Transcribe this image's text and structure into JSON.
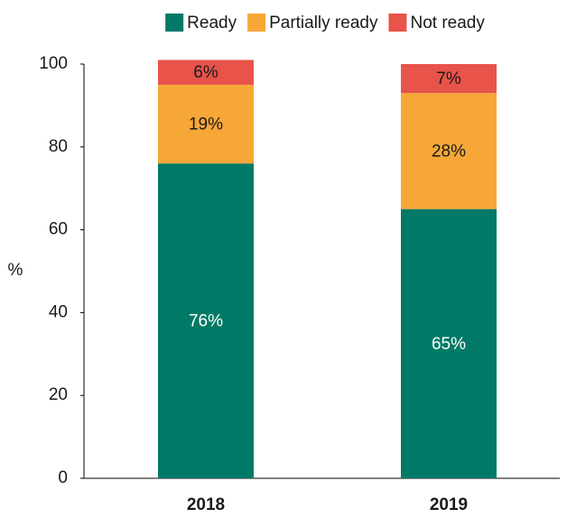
{
  "chart_data": {
    "type": "stacked_bar",
    "categories": [
      "2018",
      "2019"
    ],
    "series": [
      {
        "name": "Ready",
        "color": "#007a66",
        "values": [
          76,
          65
        ],
        "value_labels": [
          "76%",
          "65%"
        ]
      },
      {
        "name": "Partially ready",
        "color": "#f7a738",
        "values": [
          19,
          28
        ],
        "value_labels": [
          "19%",
          "28%"
        ]
      },
      {
        "name": "Not ready",
        "color": "#e8534a",
        "values": [
          6,
          7
        ],
        "value_labels": [
          "6%",
          "7%"
        ]
      }
    ],
    "ylabel": "%",
    "ylim": [
      0,
      100
    ],
    "yticks": [
      0,
      20,
      40,
      60,
      80,
      100
    ],
    "legend": "top"
  }
}
